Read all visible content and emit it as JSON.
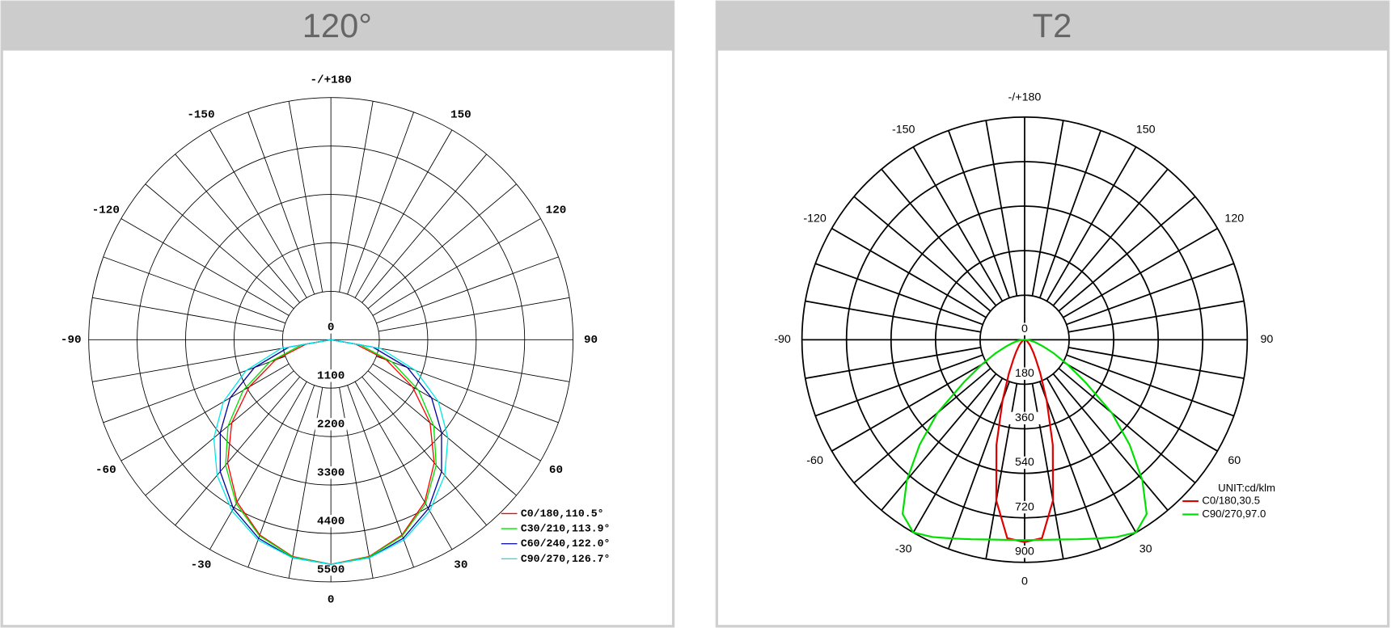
{
  "chart_data": [
    {
      "type": "polar",
      "title": "120°",
      "rlim": [
        0,
        5500
      ],
      "rticks": [
        0,
        1100,
        2200,
        3300,
        4400,
        5500
      ],
      "angle_ticks": [
        {
          "value": 180,
          "label": "-/+180"
        },
        -150,
        150,
        -120,
        120,
        -90,
        90,
        -60,
        60,
        -30,
        30,
        0
      ],
      "theta": [
        -90,
        -80,
        -70,
        -60,
        -50,
        -40,
        -30,
        -20,
        -10,
        0,
        10,
        20,
        30,
        40,
        50,
        60,
        70,
        80,
        90
      ],
      "series": [
        {
          "name": "C0/180,110.5°",
          "color": "#ff0000",
          "values": [
            0,
            570,
            1340,
            2140,
            2940,
            3650,
            4260,
            4720,
            5000,
            5100,
            5000,
            4720,
            4260,
            3650,
            2940,
            2140,
            1340,
            570,
            0
          ]
        },
        {
          "name": "C30/210,113.9°",
          "color": "#00e000",
          "values": [
            0,
            680,
            1480,
            2300,
            3050,
            3720,
            4300,
            4740,
            5010,
            5100,
            5010,
            4740,
            4300,
            3720,
            3050,
            2300,
            1480,
            680,
            0
          ]
        },
        {
          "name": "C60/240,122.0°",
          "color": "#0000a0",
          "values": [
            0,
            970,
            1850,
            2640,
            3280,
            3910,
            4430,
            4800,
            5030,
            5100,
            5030,
            4800,
            4430,
            3910,
            3280,
            2640,
            1850,
            970,
            0
          ]
        },
        {
          "name": "C90/270,126.7°",
          "color": "#00e8e8",
          "values": [
            0,
            1150,
            2050,
            2820,
            3470,
            4020,
            4490,
            4840,
            5030,
            5100,
            5030,
            4840,
            4490,
            4020,
            3470,
            2820,
            2050,
            1150,
            0
          ]
        }
      ]
    },
    {
      "type": "polar",
      "title": "T2",
      "unit_label": "UNIT:cd/klm",
      "rlim": [
        0,
        900
      ],
      "rticks": [
        0,
        180,
        360,
        540,
        720,
        900
      ],
      "angle_ticks": [
        {
          "value": 180,
          "label": "-/+180"
        },
        -150,
        150,
        -120,
        120,
        -90,
        90,
        -60,
        60,
        -30,
        30,
        0
      ],
      "theta": [
        -90,
        -85,
        -80,
        -75,
        -70,
        -65,
        -60,
        -55,
        -50,
        -45,
        -40,
        -35,
        -30,
        -25,
        -20,
        -15,
        -10,
        -5,
        0,
        5,
        10,
        15,
        20,
        25,
        30,
        35,
        40,
        45,
        50,
        55,
        60,
        65,
        70,
        75,
        80,
        85,
        90
      ],
      "series": [
        {
          "name": "C0/180,30.5",
          "color": "#e00000",
          "values": [
            0,
            1,
            2,
            3,
            5,
            8,
            10,
            15,
            20,
            30,
            40,
            60,
            90,
            150,
            260,
            440,
            660,
            805,
            818,
            805,
            660,
            440,
            260,
            150,
            90,
            60,
            40,
            30,
            20,
            15,
            10,
            8,
            5,
            3,
            2,
            1,
            0
          ]
        },
        {
          "name": "C90/270,97.0",
          "color": "#00e000",
          "values": [
            0,
            15,
            30,
            50,
            80,
            130,
            200,
            300,
            460,
            600,
            740,
            860,
            900,
            880,
            855,
            835,
            820,
            812,
            810,
            812,
            820,
            835,
            855,
            880,
            900,
            860,
            740,
            600,
            460,
            300,
            200,
            130,
            80,
            50,
            30,
            15,
            0
          ]
        }
      ]
    }
  ]
}
